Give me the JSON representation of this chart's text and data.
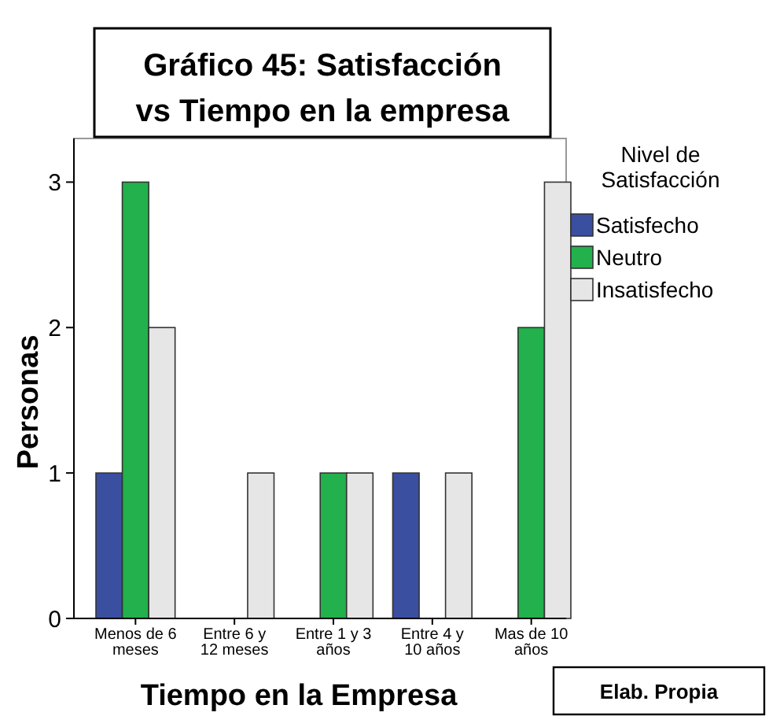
{
  "chart_data": {
    "type": "bar",
    "title": "Gráfico 45: Satisfacción vs Tiempo en la empresa",
    "xlabel": "Tiempo en la Empresa",
    "ylabel": "Personas",
    "legend_title": "Nivel de Satisfacción",
    "annotations": [
      "Elab. Propia"
    ],
    "categories": [
      "Menos de 6 meses",
      "Entre 6 y 12 meses",
      "Entre 1 y 3 años",
      "Entre 4 y 10 años",
      "Mas de 10 años"
    ],
    "series": [
      {
        "name": "Satisfecho",
        "color": "#3a4fa0",
        "values": [
          1,
          0,
          0,
          1,
          0
        ]
      },
      {
        "name": "Neutro",
        "color": "#22b14c",
        "values": [
          3,
          0,
          1,
          0,
          2
        ]
      },
      {
        "name": "Insatisfecho",
        "color": "#e6e6e6",
        "values": [
          2,
          1,
          1,
          1,
          3
        ]
      }
    ],
    "ylim": [
      0,
      3.3
    ],
    "yticks": [
      0,
      1,
      2,
      3
    ],
    "grid": false,
    "legend": "right"
  }
}
